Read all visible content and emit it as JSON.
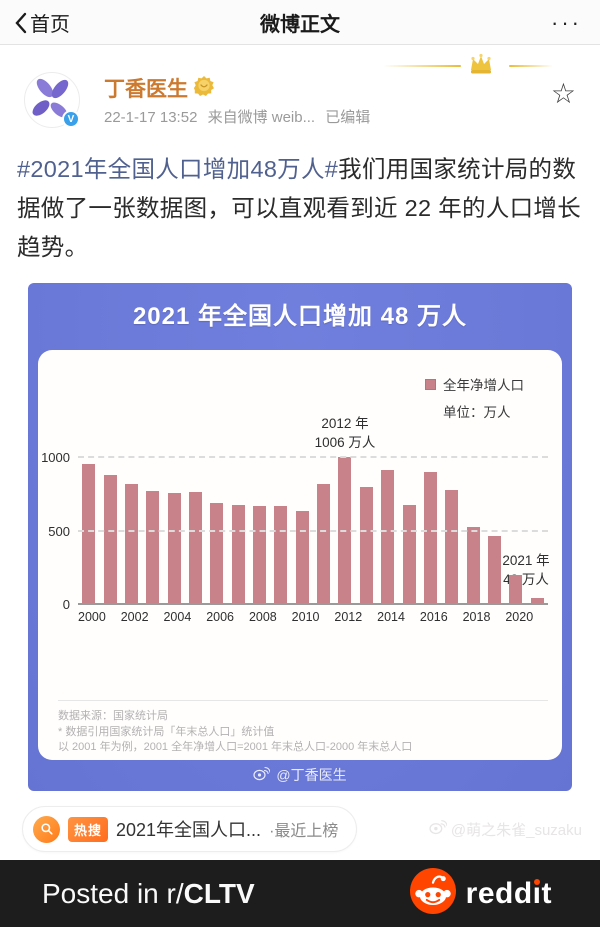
{
  "nav": {
    "back_label": "首页",
    "title": "微博正文",
    "more_label": "···"
  },
  "post": {
    "author": "丁香医生",
    "time": "22-1-17 13:52",
    "source": "来自微博 weib...",
    "edited_label": "已编辑",
    "star_icon": "☆",
    "hashtag": "#2021年全国人口增加48万人#",
    "body": "我们用国家统计局的数据做了一张数据图，可以直观看到近 22 年的人口增长趋势。"
  },
  "infographic": {
    "title": "2021 年全国人口增加 48 万人",
    "legend_label": "全年净增人口",
    "unit_label": "单位：万人",
    "ann_2012_line1": "2012 年",
    "ann_2012_line2": "1006 万人",
    "ann_2021_line1": "2021 年",
    "ann_2021_line2": "48 万人",
    "note_line1": "数据来源：国家统计局",
    "note_line2": "* 数据引用国家统计局「年末总人口」统计值",
    "note_line3": "以 2001 年为例，2001 全年净增人口=2001 年末总人口-2000 年末总人口",
    "watermark": "@丁香医生"
  },
  "chart_data": {
    "type": "bar",
    "title": "2021 年全国人口增加 48 万人",
    "ylabel": "万人",
    "categories": [
      2000,
      2001,
      2002,
      2003,
      2004,
      2005,
      2006,
      2007,
      2008,
      2009,
      2010,
      2011,
      2012,
      2013,
      2014,
      2015,
      2016,
      2017,
      2018,
      2019,
      2020,
      2021
    ],
    "values": [
      957,
      884,
      826,
      774,
      761,
      768,
      692,
      681,
      673,
      672,
      641,
      825,
      1006,
      804,
      920,
      680,
      906,
      779,
      530,
      467,
      204,
      48
    ],
    "yticks": [
      0,
      500,
      1000
    ],
    "ylim": [
      0,
      1050
    ],
    "xtick_step": 2,
    "grid": "horizontal-dashed",
    "legend": [
      "全年净增人口"
    ],
    "legend_position": "top-right",
    "bar_color": "#c8838a",
    "annotations": [
      {
        "category": 2012,
        "lines": [
          "2012 年",
          "1006 万人"
        ]
      },
      {
        "category": 2021,
        "lines": [
          "2021 年",
          "48 万人"
        ]
      }
    ]
  },
  "hot_search": {
    "badge": "热搜",
    "title": "2021年全国人口...",
    "status": "·最近上榜",
    "watermark": "@萌之朱雀_suzaku"
  },
  "reddit_bar": {
    "prefix": "Posted in r/",
    "subreddit": "CLTV",
    "brand_pre": "redd",
    "brand_i": "ı",
    "brand_post": "t"
  },
  "colors": {
    "theme_purple": "#6b79d8",
    "bar_pink": "#c8838a",
    "reddit_orange": "#ff4500",
    "hashtag_blue": "#51618f",
    "author_orange": "#cc7a2f"
  }
}
